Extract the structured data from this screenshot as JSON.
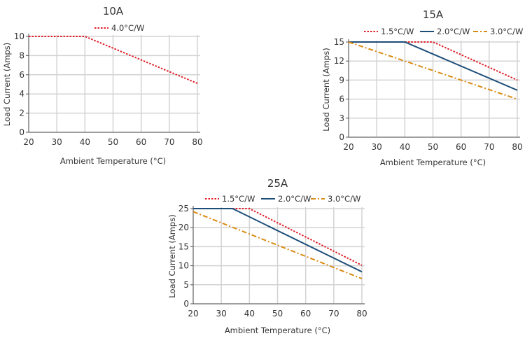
{
  "colors": {
    "red": "#e0202a",
    "blue": "#1d4e79",
    "orange": "#d98a12",
    "grid": "#d3d3d3",
    "axis": "#555555"
  },
  "chart_data": [
    {
      "type": "line",
      "title": "10A",
      "xlabel": "Ambient Temperature (°C)",
      "ylabel": "Load Current (Amps)",
      "xlim": [
        20,
        80
      ],
      "ylim": [
        0,
        10
      ],
      "xticks": [
        20,
        30,
        40,
        50,
        60,
        70,
        80
      ],
      "yticks": [
        0,
        2,
        4,
        6,
        8,
        10
      ],
      "grid": true,
      "legend": "top",
      "series": [
        {
          "name": "4.0°C/W",
          "style": "dotted",
          "color": "#e0202a",
          "x": [
            20,
            40,
            80
          ],
          "y": [
            10,
            10,
            5.1
          ]
        }
      ]
    },
    {
      "type": "line",
      "title": "15A",
      "xlabel": "Ambient Temperature (°C)",
      "ylabel": "Load Current (Amps)",
      "xlim": [
        20,
        80
      ],
      "ylim": [
        0,
        15
      ],
      "xticks": [
        20,
        30,
        40,
        50,
        60,
        70,
        80
      ],
      "yticks": [
        0,
        3,
        6,
        9,
        12,
        15
      ],
      "grid": true,
      "legend": "top",
      "series": [
        {
          "name": "1.5°C/W",
          "style": "dotted",
          "color": "#e0202a",
          "x": [
            40,
            50,
            80
          ],
          "y": [
            15,
            15,
            9
          ]
        },
        {
          "name": "2.0°C/W",
          "style": "solid",
          "color": "#1d4e79",
          "x": [
            20,
            40,
            80
          ],
          "y": [
            15,
            15,
            7.4
          ]
        },
        {
          "name": "3.0°C/W",
          "style": "dashdot",
          "color": "#d98a12",
          "x": [
            20,
            80
          ],
          "y": [
            15,
            6
          ]
        }
      ]
    },
    {
      "type": "line",
      "title": "25A",
      "xlabel": "Ambient Temperature (°C)",
      "ylabel": "Load Current (Amps)",
      "xlim": [
        20,
        80
      ],
      "ylim": [
        0,
        25
      ],
      "xticks": [
        20,
        30,
        40,
        50,
        60,
        70,
        80
      ],
      "yticks": [
        0,
        5,
        10,
        15,
        20,
        25
      ],
      "grid": true,
      "legend": "top",
      "series": [
        {
          "name": "1.5°C/W",
          "style": "dotted",
          "color": "#e0202a",
          "x": [
            34,
            40,
            80
          ],
          "y": [
            25,
            25,
            10.1
          ]
        },
        {
          "name": "2.0°C/W",
          "style": "solid",
          "color": "#1d4e79",
          "x": [
            20,
            34,
            80
          ],
          "y": [
            25,
            25,
            8.4
          ]
        },
        {
          "name": "3.0°C/W",
          "style": "dashdot",
          "color": "#d98a12",
          "x": [
            20,
            80
          ],
          "y": [
            24.2,
            6.6
          ]
        }
      ]
    }
  ]
}
